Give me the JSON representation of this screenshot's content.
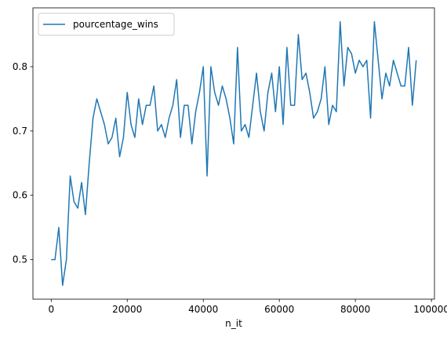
{
  "chart_data": {
    "type": "line",
    "title": "",
    "xlabel": "n_it",
    "ylabel": "",
    "xlim": [
      -4800,
      100800
    ],
    "ylim": [
      0.4385,
      0.8915
    ],
    "x_ticks": [
      0,
      20000,
      40000,
      60000,
      80000,
      100000
    ],
    "y_ticks": [
      0.5,
      0.6,
      0.7,
      0.8
    ],
    "x_tick_labels": [
      "0",
      "20000",
      "40000",
      "60000",
      "80000",
      "100000"
    ],
    "y_tick_labels": [
      "0.5",
      "0.6",
      "0.7",
      "0.8"
    ],
    "grid": false,
    "legend_position": "upper-left",
    "series": [
      {
        "name": "pourcentage_wins",
        "color": "#1f77b4",
        "x": [
          0,
          1000,
          2000,
          3000,
          4000,
          5000,
          6000,
          7000,
          8000,
          9000,
          10000,
          11000,
          12000,
          13000,
          14000,
          15000,
          16000,
          17000,
          18000,
          19000,
          20000,
          21000,
          22000,
          23000,
          24000,
          25000,
          26000,
          27000,
          28000,
          29000,
          30000,
          31000,
          32000,
          33000,
          34000,
          35000,
          36000,
          37000,
          38000,
          39000,
          40000,
          41000,
          42000,
          43000,
          44000,
          45000,
          46000,
          47000,
          48000,
          49000,
          50000,
          51000,
          52000,
          53000,
          54000,
          55000,
          56000,
          57000,
          58000,
          59000,
          60000,
          61000,
          62000,
          63000,
          64000,
          65000,
          66000,
          67000,
          68000,
          69000,
          70000,
          71000,
          72000,
          73000,
          74000,
          75000,
          76000,
          77000,
          78000,
          79000,
          80000,
          81000,
          82000,
          83000,
          84000,
          85000,
          86000,
          87000,
          88000,
          89000,
          90000,
          91000,
          92000,
          93000,
          94000,
          95000,
          96000
        ],
        "y": [
          0.5,
          0.5,
          0.55,
          0.46,
          0.5,
          0.63,
          0.59,
          0.58,
          0.62,
          0.57,
          0.65,
          0.72,
          0.75,
          0.73,
          0.71,
          0.68,
          0.69,
          0.72,
          0.66,
          0.69,
          0.76,
          0.71,
          0.69,
          0.75,
          0.71,
          0.74,
          0.74,
          0.77,
          0.7,
          0.71,
          0.69,
          0.72,
          0.74,
          0.78,
          0.69,
          0.74,
          0.74,
          0.68,
          0.73,
          0.76,
          0.8,
          0.63,
          0.8,
          0.76,
          0.74,
          0.77,
          0.75,
          0.72,
          0.68,
          0.83,
          0.7,
          0.71,
          0.69,
          0.74,
          0.79,
          0.73,
          0.7,
          0.76,
          0.79,
          0.73,
          0.8,
          0.71,
          0.83,
          0.74,
          0.74,
          0.85,
          0.78,
          0.79,
          0.76,
          0.72,
          0.73,
          0.75,
          0.8,
          0.71,
          0.74,
          0.73,
          0.87,
          0.77,
          0.83,
          0.82,
          0.79,
          0.81,
          0.8,
          0.81,
          0.72,
          0.87,
          0.81,
          0.75,
          0.79,
          0.77,
          0.81,
          0.79,
          0.77,
          0.77,
          0.83,
          0.74,
          0.81
        ]
      }
    ]
  }
}
